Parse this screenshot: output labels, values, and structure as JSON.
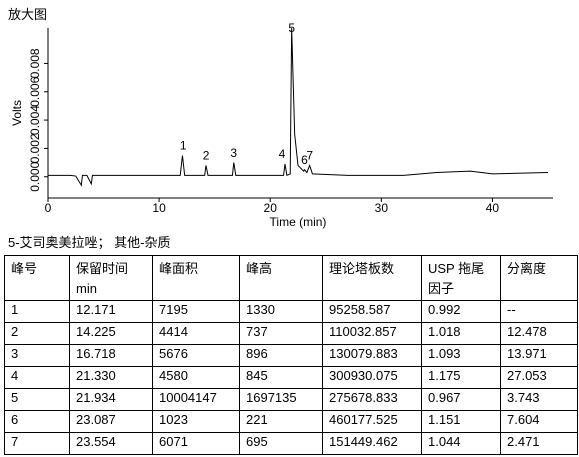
{
  "header": {
    "title": "放大图"
  },
  "chart_data": {
    "type": "line",
    "ylabel": "Volts",
    "xlabel": "Time (min)",
    "xlim": [
      0,
      45
    ],
    "xticks": [
      0,
      10,
      20,
      30,
      40
    ],
    "ylim": [
      -0.0015,
      0.0105
    ],
    "yticks": [
      {
        "value": 0,
        "label": "0.000"
      },
      {
        "value": 0.002,
        "label": "0.002"
      },
      {
        "value": 0.004,
        "label": "0.004"
      },
      {
        "value": 0.006,
        "label": "0.006"
      },
      {
        "value": 0.008,
        "label": "0.008"
      }
    ],
    "x": [
      0,
      2,
      2.5,
      3,
      3.1,
      3.5,
      3.9,
      4.0,
      6,
      11.9,
      12.1,
      12.3,
      14.1,
      14.22,
      14.4,
      16.6,
      16.72,
      16.9,
      21.2,
      21.33,
      21.5,
      21.8,
      21.93,
      22.2,
      22.5,
      23.0,
      23.09,
      23.3,
      23.55,
      23.8,
      27,
      32,
      35,
      38,
      40,
      45
    ],
    "series": [
      {
        "color": "#000000",
        "values": [
          0.0001,
          0.0001,
          5e-05,
          -0.0006,
          0.0001,
          0.0001,
          -0.0005,
          0.0001,
          0.0001,
          0.0001,
          0.0015,
          0.0001,
          0.0001,
          0.0008,
          0.0001,
          0.0001,
          0.001,
          0.0001,
          0.0001,
          0.0009,
          0.0001,
          0.0002,
          0.0105,
          0.003,
          0.0008,
          0.0004,
          0.0005,
          0.0003,
          0.0008,
          0.0002,
          0.0001,
          0.0001,
          0.0003,
          0.0004,
          0.0002,
          0.0003
        ]
      }
    ],
    "annotations": [
      "1",
      "2",
      "3",
      "4",
      "5",
      "6",
      "7"
    ]
  },
  "caption": "5-艾司奥美拉唑；  其他-杂质",
  "table": {
    "header": [
      "峰号",
      "保留时间 min",
      "峰面积",
      "峰高",
      "理论塔板数",
      "USP 拖尾因子",
      "分离度"
    ],
    "rows": [
      [
        "1",
        "12.171",
        "7195",
        "1330",
        "95258.587",
        "0.992",
        "--"
      ],
      [
        "2",
        "14.225",
        "4414",
        "737",
        "110032.857",
        "1.018",
        "12.478"
      ],
      [
        "3",
        "16.718",
        "5676",
        "896",
        "130079.883",
        "1.093",
        "13.971"
      ],
      [
        "4",
        "21.330",
        "4580",
        "845",
        "300930.075",
        "1.175",
        "27.053"
      ],
      [
        "5",
        "21.934",
        "10004147",
        "1697135",
        "275678.833",
        "0.967",
        "3.743"
      ],
      [
        "6",
        "23.087",
        "1023",
        "221",
        "460177.525",
        "1.151",
        "7.604"
      ],
      [
        "7",
        "23.554",
        "6071",
        "695",
        "151449.462",
        "1.044",
        "2.471"
      ]
    ]
  }
}
